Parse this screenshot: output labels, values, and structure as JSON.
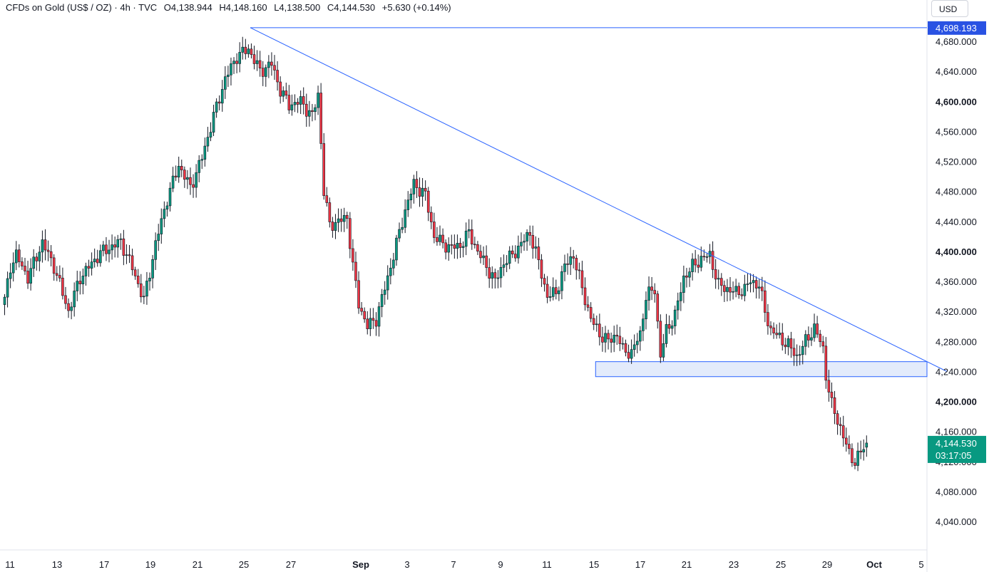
{
  "header": {
    "symbol": "CFDs on Gold (US$ / OZ) · 4h · TVC",
    "open": "O4,138.944",
    "high": "H4,148.160",
    "low": "L4,138.500",
    "close": "C4,144.530",
    "change": "+5.630 (+0.14%)"
  },
  "currency": "USD",
  "colors": {
    "up": "#089981",
    "down": "#f23645",
    "trend": "#2962ff",
    "zone_fill": "#e3ebfb",
    "zone_border": "#2962ff"
  },
  "chart_data": {
    "type": "candlestick",
    "y_ticks": [
      "4,040.000",
      "4,080.000",
      "4,120.000",
      "4,160.000",
      "4,200.000",
      "4,240.000",
      "4,280.000",
      "4,320.000",
      "4,360.000",
      "4,400.000",
      "4,440.000",
      "4,480.000",
      "4,520.000",
      "4,560.000",
      "4,600.000",
      "4,640.000",
      "4,680.000"
    ],
    "y_tick_values": [
      4040,
      4080,
      4120,
      4160,
      4200,
      4240,
      4280,
      4320,
      4360,
      4400,
      4440,
      4480,
      4520,
      4560,
      4600,
      4640,
      4680
    ],
    "y_bold_values": [
      4200,
      4400,
      4600
    ],
    "ylim": [
      4000,
      4710
    ],
    "x_ticks": [
      "11",
      "13",
      "17",
      "19",
      "21",
      "25",
      "27",
      "Sep",
      "3",
      "7",
      "9",
      "11",
      "15",
      "17",
      "21",
      "23",
      "25",
      "29",
      "Oct",
      "5"
    ],
    "x_bold": [
      "Sep",
      "Oct"
    ],
    "price_labels": {
      "high_line": {
        "text": "4,698.193",
        "value": 4698.193
      },
      "current": {
        "price": "4,144.530",
        "countdown": "03:17:05",
        "value": 4144.53
      }
    },
    "anchors": [
      [
        0,
        4335
      ],
      [
        2,
        4380
      ],
      [
        4,
        4395
      ],
      [
        8,
        4365
      ],
      [
        13,
        4412
      ],
      [
        17,
        4380
      ],
      [
        22,
        4320
      ],
      [
        26,
        4365
      ],
      [
        33,
        4398
      ],
      [
        40,
        4413
      ],
      [
        44,
        4378
      ],
      [
        48,
        4335
      ],
      [
        52,
        4410
      ],
      [
        56,
        4470
      ],
      [
        60,
        4515
      ],
      [
        64,
        4485
      ],
      [
        68,
        4525
      ],
      [
        72,
        4580
      ],
      [
        76,
        4630
      ],
      [
        80,
        4660
      ],
      [
        84,
        4670
      ],
      [
        88,
        4640
      ],
      [
        92,
        4650
      ],
      [
        95,
        4615
      ],
      [
        98,
        4595
      ],
      [
        102,
        4600
      ],
      [
        106,
        4580
      ],
      [
        108,
        4610
      ],
      [
        110,
        4480
      ],
      [
        112,
        4435
      ],
      [
        115,
        4440
      ],
      [
        118,
        4445
      ],
      [
        120,
        4380
      ],
      [
        122,
        4330
      ],
      [
        125,
        4300
      ],
      [
        128,
        4310
      ],
      [
        132,
        4365
      ],
      [
        135,
        4410
      ],
      [
        138,
        4455
      ],
      [
        141,
        4490
      ],
      [
        145,
        4475
      ],
      [
        148,
        4420
      ],
      [
        151,
        4410
      ],
      [
        154,
        4405
      ],
      [
        157,
        4408
      ],
      [
        160,
        4425
      ],
      [
        163,
        4400
      ],
      [
        166,
        4380
      ],
      [
        169,
        4360
      ],
      [
        172,
        4385
      ],
      [
        175,
        4395
      ],
      [
        178,
        4410
      ],
      [
        181,
        4425
      ],
      [
        184,
        4385
      ],
      [
        187,
        4340
      ],
      [
        190,
        4345
      ],
      [
        193,
        4380
      ],
      [
        196,
        4395
      ],
      [
        199,
        4350
      ],
      [
        202,
        4310
      ],
      [
        205,
        4290
      ],
      [
        208,
        4280
      ],
      [
        211,
        4290
      ],
      [
        213,
        4268
      ],
      [
        216,
        4265
      ],
      [
        219,
        4290
      ],
      [
        221,
        4340
      ],
      [
        224,
        4350
      ],
      [
        226,
        4260
      ],
      [
        228,
        4295
      ],
      [
        231,
        4315
      ],
      [
        234,
        4365
      ],
      [
        237,
        4380
      ],
      [
        240,
        4390
      ],
      [
        243,
        4395
      ],
      [
        246,
        4355
      ],
      [
        249,
        4350
      ],
      [
        252,
        4345
      ],
      [
        255,
        4350
      ],
      [
        257,
        4360
      ],
      [
        260,
        4355
      ],
      [
        262,
        4320
      ],
      [
        264,
        4295
      ],
      [
        267,
        4285
      ],
      [
        270,
        4275
      ],
      [
        273,
        4260
      ],
      [
        276,
        4280
      ],
      [
        279,
        4298
      ],
      [
        281,
        4280
      ],
      [
        282,
        4270
      ],
      [
        283,
        4235
      ],
      [
        285,
        4195
      ],
      [
        288,
        4165
      ],
      [
        291,
        4130
      ],
      [
        293,
        4120
      ],
      [
        295,
        4132
      ],
      [
        297,
        4144.53
      ]
    ],
    "trend_line": {
      "from": {
        "bar": 85,
        "value": 4698.193
      },
      "to": {
        "bar": 325,
        "value": 4240
      }
    },
    "high_line": {
      "from_bar": 85,
      "value": 4698.193
    },
    "support_zone": {
      "from_bar": 204,
      "low": 4233,
      "high": 4253
    }
  }
}
